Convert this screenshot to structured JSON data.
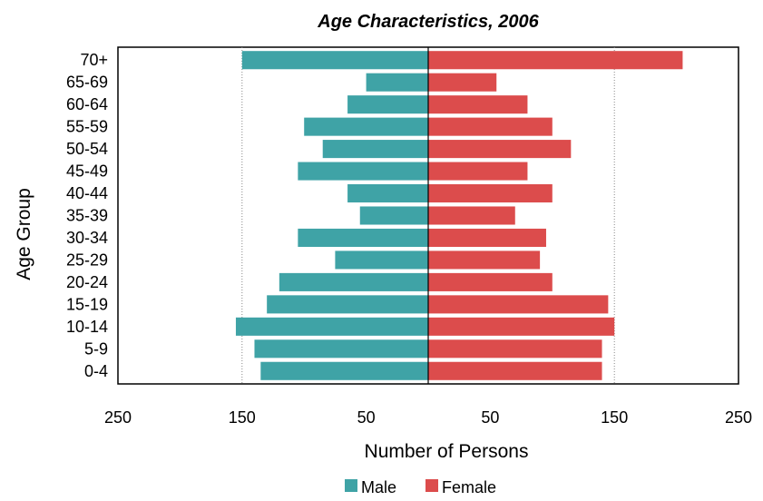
{
  "chart_data": {
    "type": "bar",
    "orientation": "horizontal",
    "title": "Age Characteristics, 2006",
    "xlabel": "Number of Persons",
    "ylabel": "Age Group",
    "categories": [
      "0-4",
      "5-9",
      "10-14",
      "15-19",
      "20-24",
      "25-29",
      "30-34",
      "35-39",
      "40-44",
      "45-49",
      "50-54",
      "55-59",
      "60-64",
      "65-69",
      "70+"
    ],
    "series": [
      {
        "name": "Male",
        "color": "#3fa3a6",
        "values": [
          135,
          140,
          155,
          130,
          120,
          75,
          105,
          55,
          65,
          105,
          85,
          100,
          65,
          50,
          150
        ]
      },
      {
        "name": "Female",
        "color": "#dc4c4c",
        "values": [
          140,
          140,
          150,
          145,
          100,
          90,
          95,
          70,
          100,
          80,
          115,
          100,
          80,
          55,
          205
        ]
      }
    ],
    "x_ticks": [
      "250",
      "150",
      "50",
      "50",
      "150",
      "250"
    ],
    "xlim": [
      -250,
      250
    ],
    "grid": "vertical dotted lines at 150",
    "legend": "bottom"
  }
}
